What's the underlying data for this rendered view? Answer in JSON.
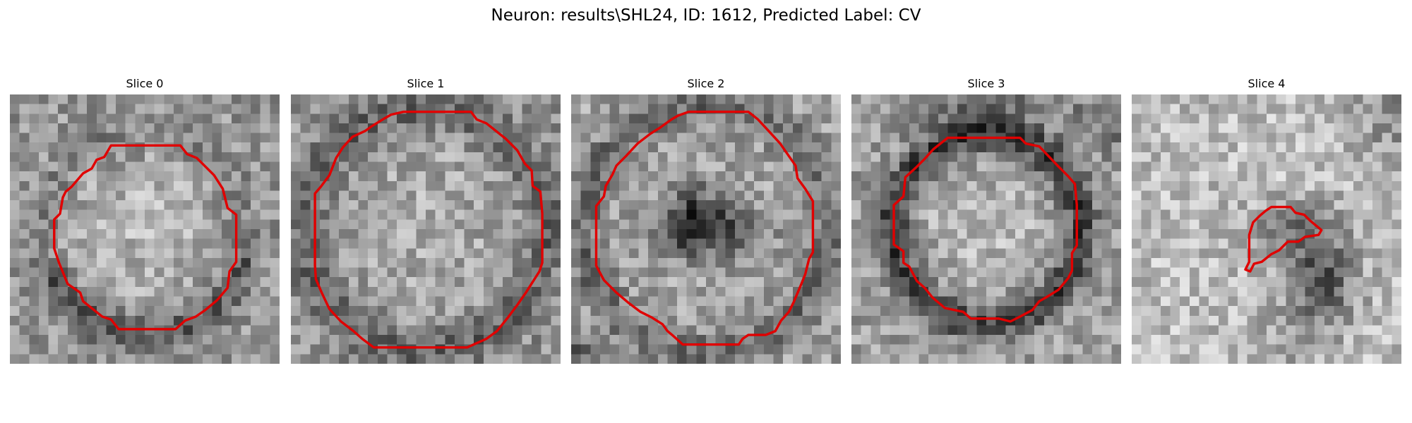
{
  "figure": {
    "title": "Neuron: results\\SHL24, ID: 1612, Predicted Label: CV",
    "contour_color": "#e00000"
  },
  "panels": [
    {
      "title": "Slice 0",
      "seed": 11,
      "background": "mottled gray",
      "contour": "large ring"
    },
    {
      "title": "Slice 1",
      "seed": 23,
      "background": "mottled gray",
      "contour": "large ring"
    },
    {
      "title": "Slice 2",
      "seed": 37,
      "background": "mottled gray with dark center",
      "contour": "large ring"
    },
    {
      "title": "Slice 3",
      "seed": 51,
      "background": "mottled gray with dark halo",
      "contour": "ring"
    },
    {
      "title": "Slice 4",
      "seed": 67,
      "background": "light gray with dark lower-right blob",
      "contour": "small patch"
    }
  ]
}
